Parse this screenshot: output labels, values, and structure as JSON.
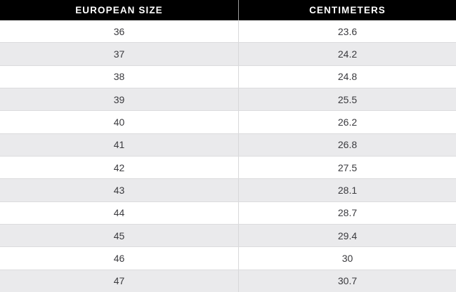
{
  "chart_data": {
    "type": "table",
    "columns": [
      "EUROPEAN SIZE",
      "CENTIMETERS"
    ],
    "rows": [
      [
        "36",
        "23.6"
      ],
      [
        "37",
        "24.2"
      ],
      [
        "38",
        "24.8"
      ],
      [
        "39",
        "25.5"
      ],
      [
        "40",
        "26.2"
      ],
      [
        "41",
        "26.8"
      ],
      [
        "42",
        "27.5"
      ],
      [
        "43",
        "28.1"
      ],
      [
        "44",
        "28.7"
      ],
      [
        "45",
        "29.4"
      ],
      [
        "46",
        "30"
      ],
      [
        "47",
        "30.7"
      ]
    ]
  },
  "colors": {
    "header_background": "#000000",
    "header_text": "#ffffff",
    "row_background": "#ffffff",
    "row_alternate_background": "#eaeaec",
    "row_border": "#dbdbdd",
    "column_divider": "#d8d8da",
    "header_column_divider": "#9c9c9c",
    "cell_text": "#3a3a3e"
  }
}
